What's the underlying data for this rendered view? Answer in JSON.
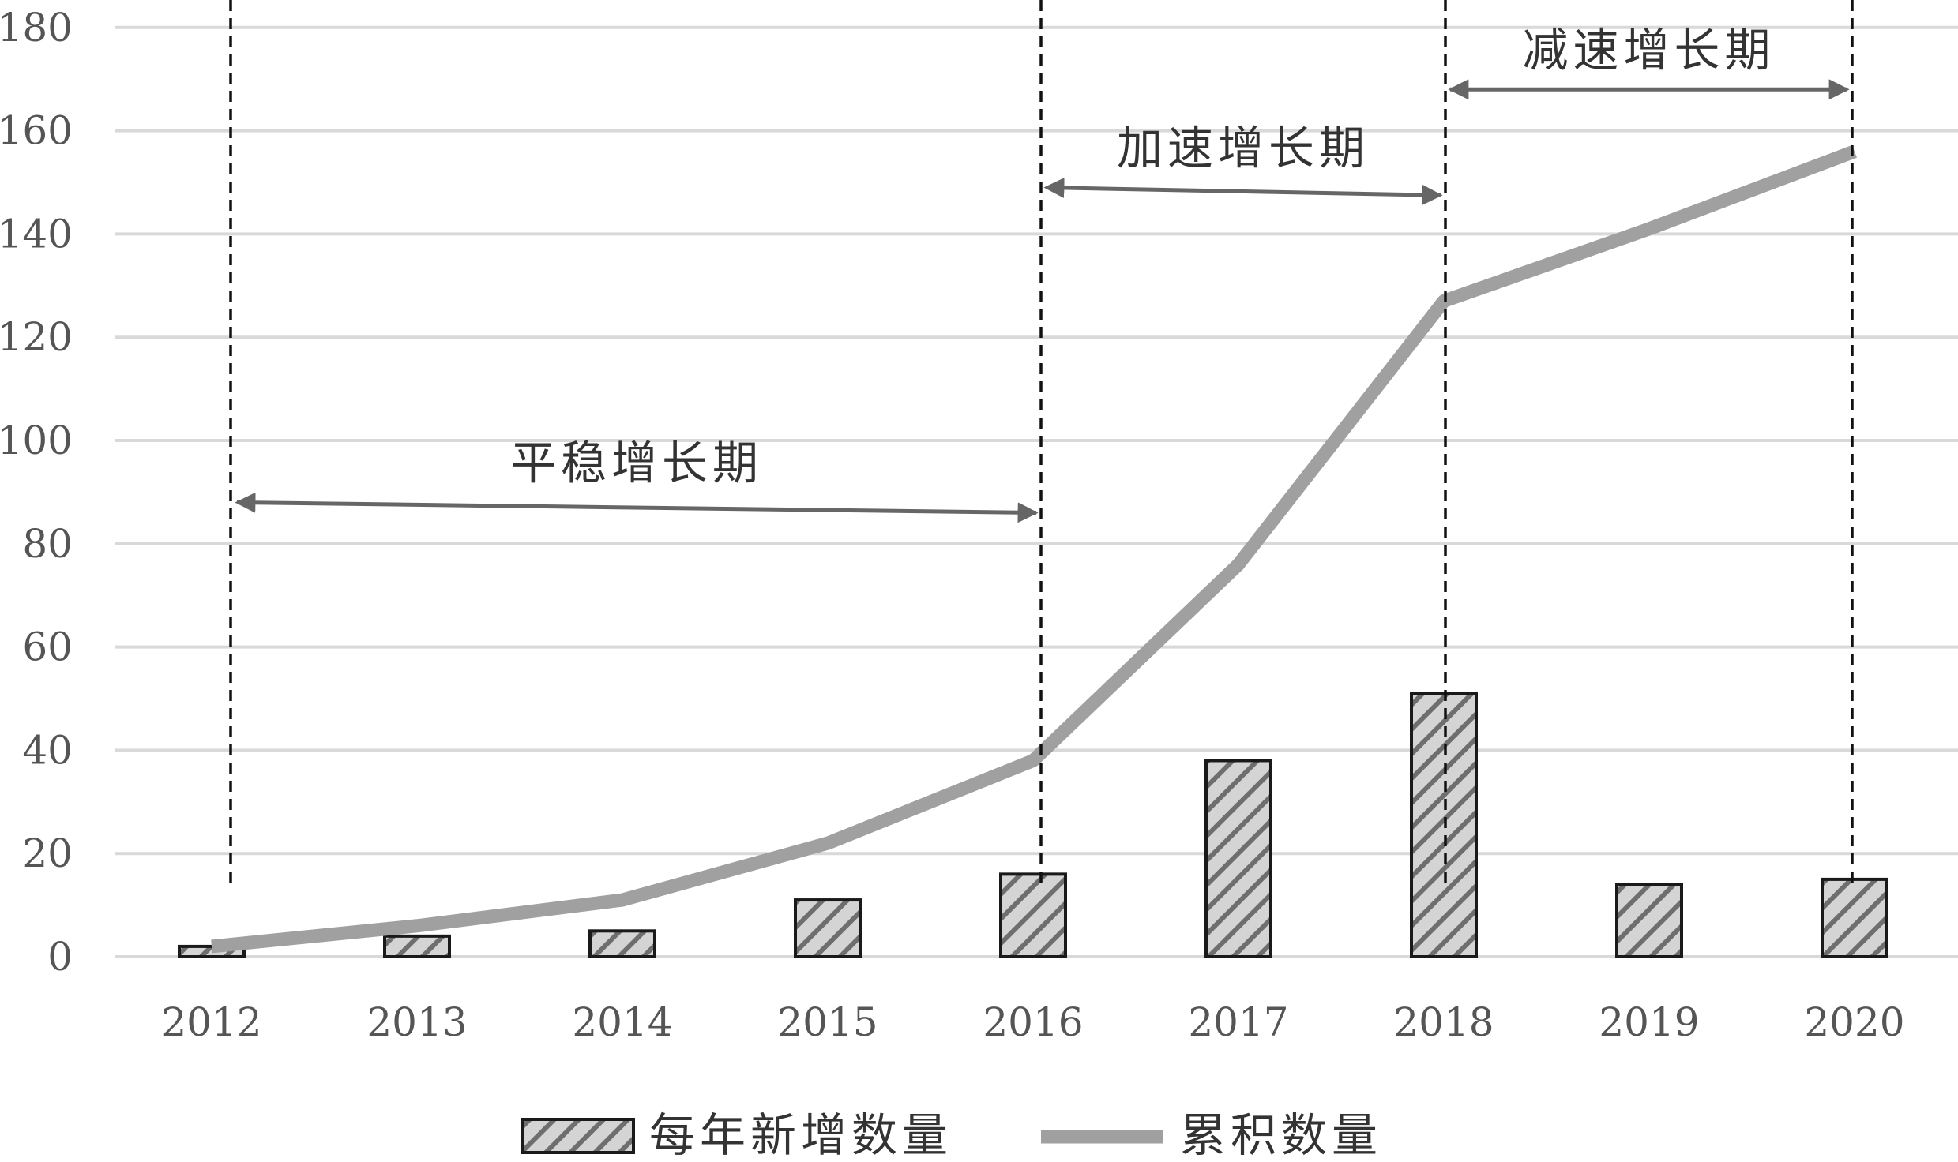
{
  "chart_data": {
    "type": "bar+line",
    "title": "",
    "xlabel": "",
    "ylabel": "",
    "categories": [
      "2012",
      "2013",
      "2014",
      "2015",
      "2016",
      "2017",
      "2018",
      "2019",
      "2020"
    ],
    "ylim": [
      0,
      180
    ],
    "yticks": [
      0,
      20,
      40,
      60,
      80,
      100,
      120,
      140,
      160,
      180
    ],
    "grid": "horizontal",
    "legend_position": "bottom-center",
    "series": [
      {
        "name": "每年新增数量",
        "type": "bar",
        "pattern": "diagonal-hatch",
        "values": [
          2,
          4,
          5,
          11,
          16,
          38,
          51,
          14,
          15
        ]
      },
      {
        "name": "累积数量",
        "type": "line",
        "color": "#a0a0a0",
        "values": [
          2,
          6,
          11,
          22,
          38,
          76,
          127,
          141,
          156
        ]
      }
    ],
    "annotations": [
      {
        "label": "平稳增长期",
        "from": "2012",
        "to": "2016",
        "y": 88
      },
      {
        "label": "加速增长期",
        "from": "2016",
        "to": "2018",
        "y": 148
      },
      {
        "label": "减速增长期",
        "from": "2018",
        "to": "2020",
        "y": 168
      }
    ],
    "dashed_markers": [
      "2012",
      "2016",
      "2018",
      "2020"
    ],
    "colors": {
      "grid": "#d9d9d9",
      "axis_text": "#555555",
      "bar_fill": "#d4d4d4",
      "bar_hatch": "#6e6e6e",
      "bar_border": "#1a1a1a",
      "line": "#a0a0a0",
      "arrow": "#666666",
      "dash": "#111111"
    }
  }
}
